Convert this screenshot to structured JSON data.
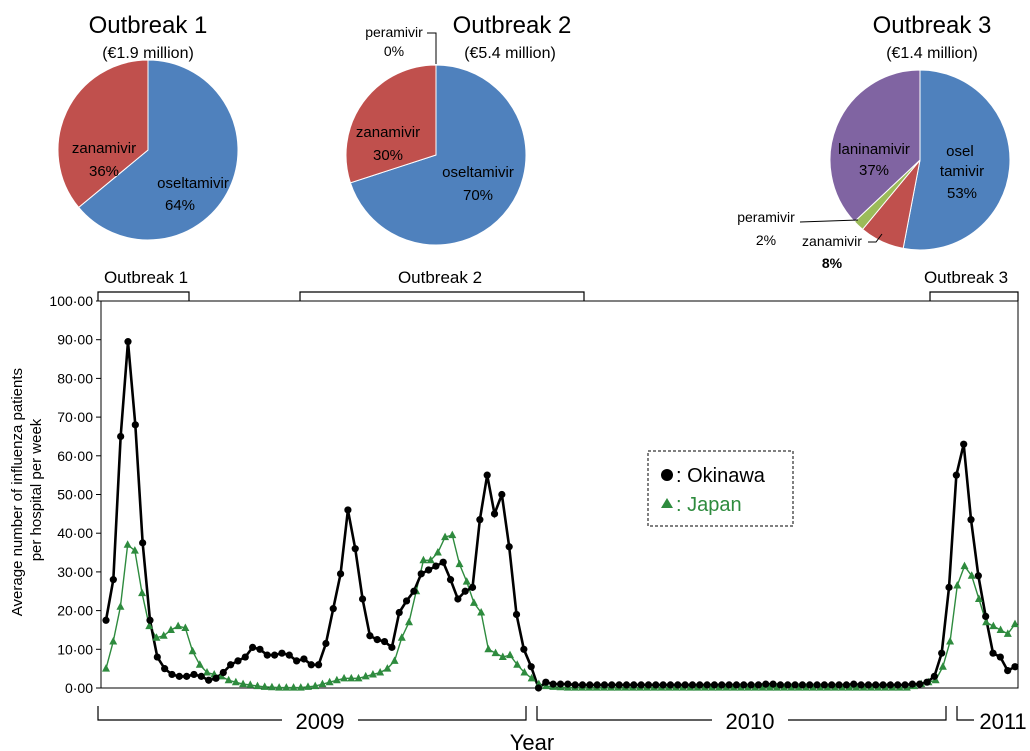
{
  "colors": {
    "oseltamivir": "#4f81bd",
    "zanamivir": "#c0504d",
    "peramivir": "#9bbb59",
    "laninamivir": "#8064a2",
    "okinawa": "#000000",
    "japan": "#2e8b3e"
  },
  "pies": [
    {
      "title": "Outbreak 1",
      "subtitle": "(€1.9 million)",
      "slices": [
        {
          "drug": "oseltamivir",
          "value": 64,
          "label": "oseltamivir",
          "pct": "64%"
        },
        {
          "drug": "zanamivir",
          "value": 36,
          "label": "zanamivir",
          "pct": "36%"
        }
      ]
    },
    {
      "title": "Outbreak 2",
      "subtitle": "(€5.4 million)",
      "slices": [
        {
          "drug": "oseltamivir",
          "value": 70,
          "label": "oseltamivir",
          "pct": "70%"
        },
        {
          "drug": "zanamivir",
          "value": 30,
          "label": "zanamivir",
          "pct": "30%"
        },
        {
          "drug": "peramivir",
          "value": 0,
          "label": "peramivir",
          "pct": "0%"
        }
      ]
    },
    {
      "title": "Outbreak 3",
      "subtitle": "(€1.4 million)",
      "slices": [
        {
          "drug": "oseltamivir",
          "value": 53,
          "label": "osel\ntamivir",
          "pct": "53%"
        },
        {
          "drug": "zanamivir",
          "value": 8,
          "label": "zanamivir",
          "pct": "8%"
        },
        {
          "drug": "peramivir",
          "value": 2,
          "label": "peramivir",
          "pct": "2%"
        },
        {
          "drug": "laninamivir",
          "value": 37,
          "label": "laninamivir",
          "pct": "37%"
        }
      ]
    }
  ],
  "outbreak_brackets": [
    "Outbreak 1",
    "Outbreak 2",
    "Outbreak 3"
  ],
  "chart_data": {
    "type": "line",
    "ylabel": "Average number of influenza patients\nper hospital per week",
    "xlabel": "Year",
    "year_labels": [
      "2009",
      "2010",
      "2011"
    ],
    "ylim": [
      0,
      100
    ],
    "yticks": [
      "0·00",
      "10·00",
      "20·00",
      "30·00",
      "40·00",
      "50·00",
      "60·00",
      "70·00",
      "80·00",
      "90·00",
      "100·00"
    ],
    "legend": {
      "placement": "center-right",
      "boxed": true
    },
    "series": [
      {
        "name": "Okinawa",
        "legend_label": ": Okinawa",
        "marker": "circle",
        "values": [
          17.5,
          28,
          65,
          89.5,
          68,
          37.5,
          17.5,
          8,
          5,
          3.5,
          3,
          3,
          3.5,
          3,
          2,
          2.5,
          4,
          6,
          7,
          8,
          10.5,
          10,
          8.5,
          8.5,
          9,
          8.5,
          7,
          7.5,
          6,
          6,
          11.5,
          20.5,
          29.5,
          46,
          36,
          23,
          13.5,
          12.5,
          12,
          10.5,
          19.5,
          22.5,
          25,
          29.5,
          30.5,
          31.5,
          32.5,
          28,
          23,
          25,
          26,
          43.5,
          55,
          45,
          50,
          36.5,
          19,
          10,
          5.5,
          0,
          1.5,
          1,
          1,
          1,
          0.8,
          0.8,
          0.8,
          0.8,
          0.8,
          0.8,
          0.8,
          0.8,
          0.8,
          0.8,
          0.8,
          0.8,
          0.8,
          0.8,
          0.8,
          0.8,
          0.8,
          0.8,
          0.8,
          0.8,
          0.8,
          0.8,
          0.8,
          0.8,
          0.8,
          0.8,
          1,
          1,
          0.8,
          0.8,
          0.8,
          0.8,
          0.8,
          0.8,
          0.8,
          0.8,
          0.8,
          0.8,
          1,
          0.8,
          0.8,
          0.8,
          0.8,
          0.8,
          0.8,
          0.8,
          1,
          1,
          1.5,
          3,
          9,
          26,
          55,
          63,
          43.5,
          29,
          18.5,
          9,
          8,
          4.5,
          5.5
        ]
      },
      {
        "name": "Japan",
        "legend_label": ": Japan",
        "marker": "triangle",
        "values": [
          5,
          12,
          21,
          37,
          35.5,
          24.5,
          16,
          13,
          13.5,
          15,
          16,
          15.5,
          9.5,
          6,
          4,
          3.5,
          3,
          2,
          1.5,
          1,
          0.8,
          0.5,
          0.3,
          0.2,
          0.1,
          0.1,
          0.1,
          0.1,
          0.3,
          0.5,
          1,
          1.5,
          2,
          2.5,
          2.5,
          2.5,
          3,
          3.5,
          4,
          5,
          7,
          13,
          17,
          25,
          33,
          33,
          35,
          39,
          39.5,
          32,
          27.5,
          22,
          19.5,
          10,
          9,
          8,
          8.5,
          6,
          4,
          2.5,
          1,
          0.5,
          0.3,
          0.2,
          0.1,
          0.1,
          0.1,
          0.1,
          0.1,
          0.1,
          0.1,
          0.1,
          0.1,
          0.1,
          0.1,
          0.1,
          0.1,
          0.1,
          0.1,
          0.1,
          0.1,
          0.1,
          0.1,
          0.1,
          0.1,
          0.1,
          0.1,
          0.1,
          0.1,
          0.1,
          0.1,
          0.1,
          0.1,
          0.1,
          0.1,
          0.1,
          0.1,
          0.1,
          0.1,
          0.1,
          0.1,
          0.1,
          0.1,
          0.1,
          0.1,
          0.1,
          0.1,
          0.1,
          0.1,
          0.1,
          0.1,
          0.1,
          0.5,
          1,
          1.5,
          2,
          5.5,
          12,
          26.5,
          31.5,
          29,
          23,
          17,
          16,
          15,
          14,
          16.5
        ]
      }
    ]
  }
}
